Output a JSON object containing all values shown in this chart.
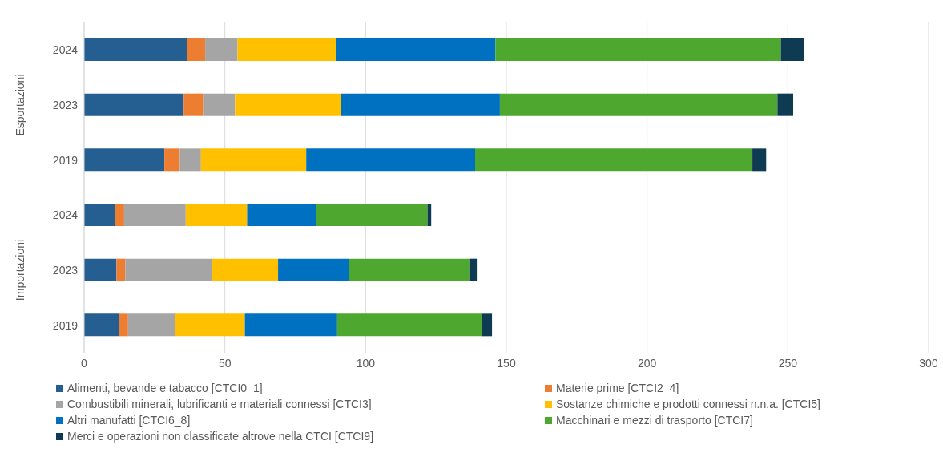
{
  "chart_data": {
    "type": "bar",
    "orientation": "horizontal",
    "stacked": true,
    "categories": [
      "2024",
      "2023",
      "2019",
      "2024",
      "2023",
      "2019"
    ],
    "annotations": [
      "Esportazioni",
      "Importazioni"
    ],
    "series": [
      {
        "name": "Alimenti, bevande e tabacco [CTCI0_1]",
        "color": "#255e91",
        "values": [
          36.5,
          35.4,
          28.5,
          11.1,
          11.5,
          12.4
        ]
      },
      {
        "name": "Materie prime [CTCI2_4]",
        "color": "#ed7d31",
        "values": [
          6.5,
          6.9,
          5.5,
          3.1,
          3.1,
          3.2
        ]
      },
      {
        "name": "Combustibili minerali, lubrificanti e materiali connessi [CTCI3]",
        "color": "#a5a5a5",
        "values": [
          11.5,
          11.3,
          7.5,
          21.9,
          30.7,
          16.7
        ]
      },
      {
        "name": "Sostanze chimiche e prodotti connessi n.n.a. [CTCI5]",
        "color": "#ffc000",
        "values": [
          35,
          37.7,
          37.4,
          21.8,
          23.6,
          24.8
        ]
      },
      {
        "name": "Altri manufatti [CTCI6_8]",
        "color": "#0070c0",
        "values": [
          56.6,
          56.4,
          60,
          24.5,
          25.1,
          32.8
        ]
      },
      {
        "name": "Macchinari e mezzi di trasporto [CTCI7]",
        "color": "#4ea72e",
        "values": [
          101.4,
          98.6,
          98.5,
          39.6,
          43.1,
          51.3
        ]
      },
      {
        "name": "Merci e operazioni non classificate altrove nella CTCI [CTCI9]",
        "color": "#0e3a52",
        "values": [
          8.3,
          5.6,
          4.9,
          1.3,
          2.4,
          3.7
        ]
      }
    ],
    "xlim": [
      0,
      300
    ],
    "xticks": [
      0,
      50,
      100,
      150,
      200,
      250,
      300
    ],
    "grid": "x",
    "legend": "bottom"
  }
}
